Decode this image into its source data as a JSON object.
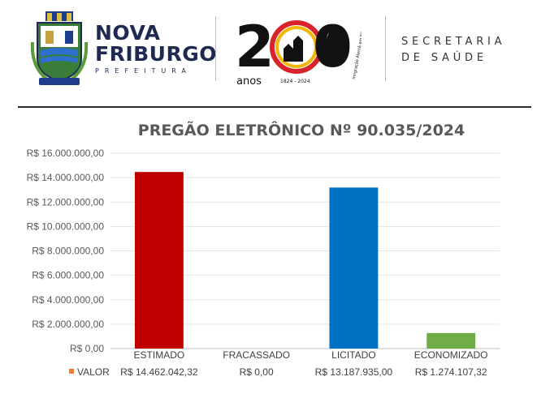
{
  "header": {
    "brand_line1": "NOVA",
    "brand_line2": "FRIBURGO",
    "brand_sub": "PREFEITURA",
    "anniversary": {
      "digit_2": "2",
      "digit_0": "0",
      "anos_label": "anos",
      "years_label": "1824 - 2024",
      "tagline": "Imigração Alemã em Nova Friburgo"
    },
    "department_line1": "SECRETARIA",
    "department_line2": "DE SAÚDE"
  },
  "colors": {
    "brand_navy": "#1e2a52",
    "estimado": "#c00000",
    "licitado": "#0070c0",
    "economizado": "#70ad47",
    "legend_marker": "#ed7d31"
  },
  "chart_data": {
    "type": "bar",
    "title": "PREGÃO ELETRÔNICO Nº 90.035/2024",
    "categories": [
      "ESTIMADO",
      "FRACASSADO",
      "LICITADO",
      "ECONOMIZADO"
    ],
    "series": [
      {
        "name": "VALOR",
        "values": [
          14462042.32,
          0,
          13187935.0,
          1274107.32
        ],
        "value_labels": [
          "R$ 14.462.042,32",
          "R$ 0,00",
          "R$ 13.187.935,00",
          "R$ 1.274.107,32"
        ],
        "colors": [
          "#c00000",
          "#7f7f7f",
          "#0070c0",
          "#70ad47"
        ]
      }
    ],
    "ylim": [
      0,
      16000000
    ],
    "y_ticks": [
      0,
      2000000,
      4000000,
      6000000,
      8000000,
      10000000,
      12000000,
      14000000,
      16000000
    ],
    "y_tick_labels": [
      "R$ 0,00",
      "R$ 2.000.000,00",
      "R$ 4.000.000,00",
      "R$ 6.000.000,00",
      "R$ 8.000.000,00",
      "R$ 10.000.000,00",
      "R$ 12.000.000,00",
      "R$ 14.000.000,00",
      "R$ 16.000.000,00"
    ],
    "grid": true,
    "legend": "bottom-left data table",
    "xlabel": "",
    "ylabel": ""
  }
}
